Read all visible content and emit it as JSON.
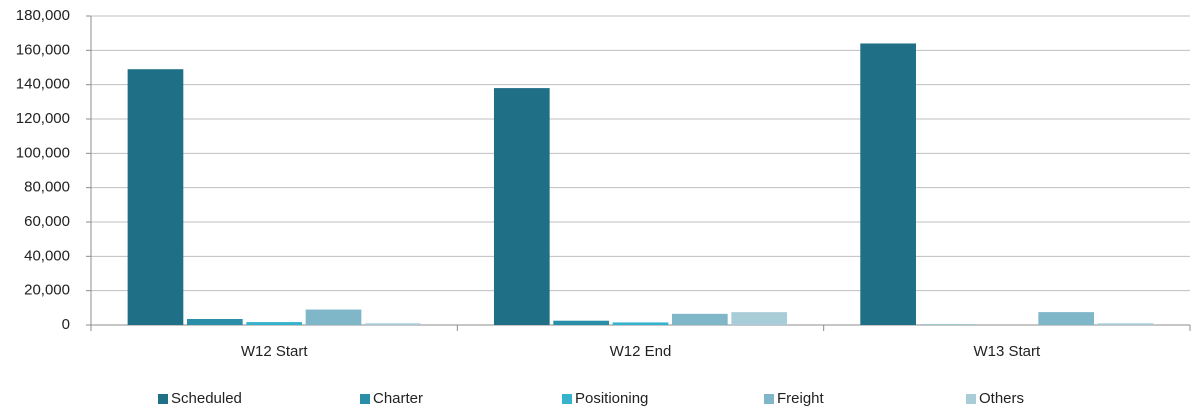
{
  "chart_data": {
    "type": "bar",
    "categories": [
      "W12 Start",
      "W12 End",
      "W13 Start"
    ],
    "series": [
      {
        "name": "Scheduled",
        "color": "#1f6f86",
        "values": [
          149000,
          138000,
          164000
        ]
      },
      {
        "name": "Charter",
        "color": "#2a8ea8",
        "values": [
          3500,
          2500,
          200
        ]
      },
      {
        "name": "Positioning",
        "color": "#35b2cc",
        "values": [
          1700,
          1500,
          0
        ]
      },
      {
        "name": "Freight",
        "color": "#7fb7c9",
        "values": [
          9000,
          6500,
          7500
        ]
      },
      {
        "name": "Others",
        "color": "#a9cdd8",
        "values": [
          1000,
          7500,
          1000
        ]
      }
    ],
    "ylim": [
      0,
      180000
    ],
    "yticks": [
      0,
      {
        "value": 20000,
        "label": "20,000"
      },
      {
        "value": 40000,
        "label": "40,000"
      },
      {
        "value": 60000,
        "label": "60,000"
      },
      {
        "value": 80000,
        "label": "80,000"
      },
      {
        "value": 100000,
        "label": "100,000"
      },
      {
        "value": 120000,
        "label": "120,000"
      },
      {
        "value": 140000,
        "label": "140,000"
      },
      {
        "value": 160000,
        "label": "160,000"
      },
      {
        "value": 180000,
        "label": "180,000"
      }
    ],
    "grid": true,
    "legend": "bottom"
  }
}
